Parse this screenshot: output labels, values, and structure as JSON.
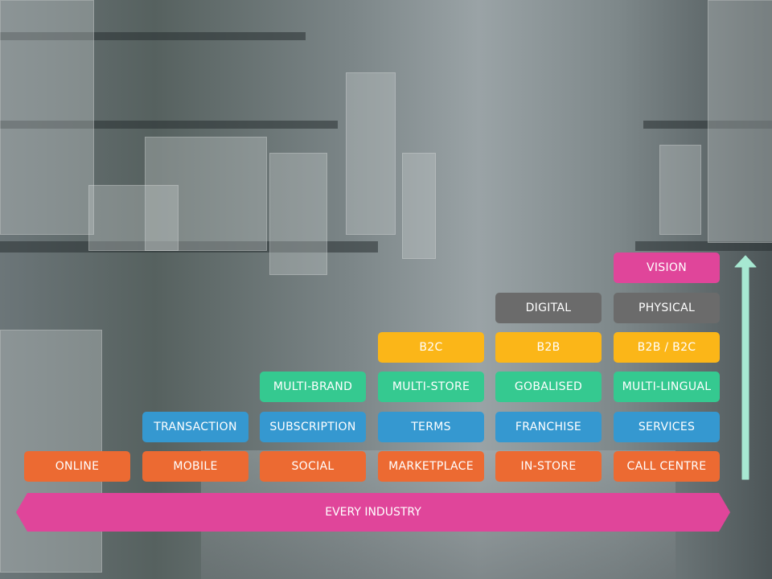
{
  "colors": {
    "channel": "#ec6a32",
    "model": "#3598d0",
    "scale": "#35c990",
    "audience": "#fbb618",
    "presence": "#6b6b6b",
    "vision": "#e0459a",
    "banner": "#e0459a",
    "arrow": "#a7e8d2"
  },
  "columns": [
    [
      {
        "label": "ONLINE",
        "kind": "channel"
      }
    ],
    [
      {
        "label": "MOBILE",
        "kind": "channel"
      },
      {
        "label": "TRANSACTION",
        "kind": "model"
      }
    ],
    [
      {
        "label": "SOCIAL",
        "kind": "channel"
      },
      {
        "label": "SUBSCRIPTION",
        "kind": "model"
      },
      {
        "label": "MULTI-BRAND",
        "kind": "scale"
      }
    ],
    [
      {
        "label": "MARKETPLACE",
        "kind": "channel"
      },
      {
        "label": "TERMS",
        "kind": "model"
      },
      {
        "label": "MULTI-STORE",
        "kind": "scale"
      },
      {
        "label": "B2C",
        "kind": "audience"
      }
    ],
    [
      {
        "label": "IN-STORE",
        "kind": "channel"
      },
      {
        "label": "FRANCHISE",
        "kind": "model"
      },
      {
        "label": "GOBALISED",
        "kind": "scale"
      },
      {
        "label": "B2B",
        "kind": "audience"
      },
      {
        "label": "DIGITAL",
        "kind": "presence"
      }
    ],
    [
      {
        "label": "CALL CENTRE",
        "kind": "channel"
      },
      {
        "label": "SERVICES",
        "kind": "model"
      },
      {
        "label": "MULTI-LINGUAL",
        "kind": "scale"
      },
      {
        "label": "B2B / B2C",
        "kind": "audience"
      },
      {
        "label": "PHYSICAL",
        "kind": "presence"
      },
      {
        "label": "VISION",
        "kind": "vision"
      }
    ]
  ],
  "banner": {
    "label": "EVERY INDUSTRY"
  },
  "arrow_icon": "up-arrow-icon"
}
